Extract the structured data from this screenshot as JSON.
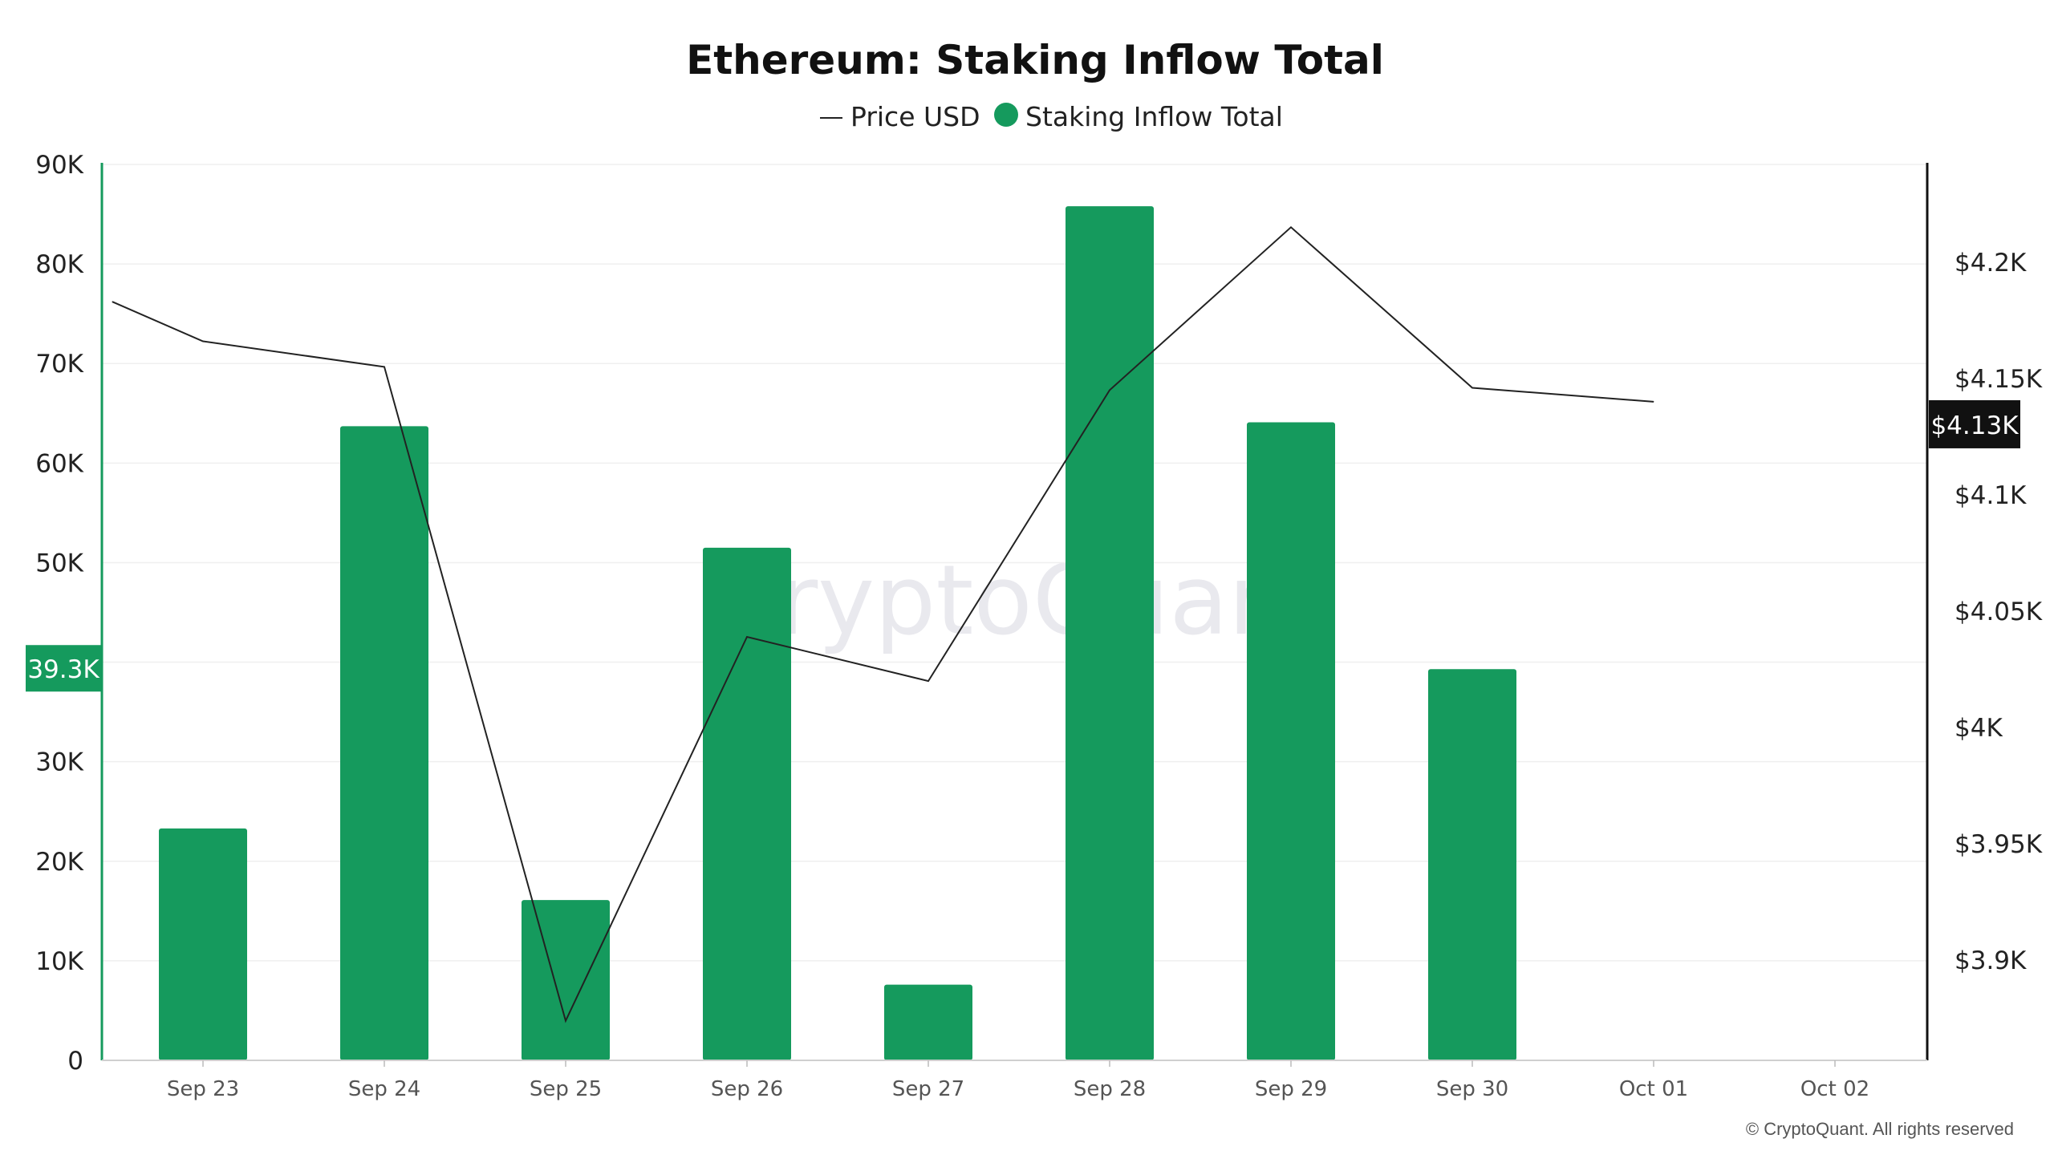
{
  "chart_data": {
    "type": "bar",
    "title": "Ethereum: Staking Inflow Total",
    "legend": [
      {
        "label": "Price USD",
        "symbol": "line",
        "color": "#222222"
      },
      {
        "label": "Staking Inflow Total",
        "symbol": "dot",
        "color": "#159a5d"
      }
    ],
    "legend_position": "top-center",
    "categories": [
      "Sep 23",
      "Sep 24",
      "Sep 25",
      "Sep 26",
      "Sep 27",
      "Sep 28",
      "Sep 29",
      "Sep 30",
      "Oct 01",
      "Oct 02"
    ],
    "series": [
      {
        "name": "Staking Inflow Total",
        "type": "bar",
        "axis": "left",
        "color": "#159a5d",
        "values": [
          23300,
          63700,
          16100,
          51500,
          7600,
          85800,
          64100,
          39300,
          null,
          null
        ]
      },
      {
        "name": "Price USD",
        "type": "line",
        "axis": "right",
        "color": "#222222",
        "x": [
          "Sep 22 12:00",
          "Sep 23",
          "Sep 24",
          "Sep 25",
          "Sep 26",
          "Sep 27",
          "Sep 28",
          "Sep 29",
          "Sep 30",
          "Oct 01"
        ],
        "values": [
          4183,
          4166,
          4155,
          3874,
          4039,
          4020,
          4145,
          4215,
          4146,
          4140
        ]
      }
    ],
    "y_left": {
      "ylim": [
        0,
        90000
      ],
      "ticks": [
        0,
        10000,
        20000,
        30000,
        40000,
        50000,
        60000,
        70000,
        80000,
        90000
      ],
      "tick_labels": [
        "0",
        "10K",
        "20K",
        "30K",
        "40K",
        "50K",
        "60K",
        "70K",
        "80K",
        "90K"
      ],
      "current_value_label": "39.3K",
      "current_value": 39300,
      "color": "#159a5d"
    },
    "y_right": {
      "ylim": [
        3857,
        4242
      ],
      "ticks": [
        3900,
        3950,
        4000,
        4050,
        4100,
        4150,
        4200
      ],
      "tick_labels": [
        "$3.9K",
        "$3.95K",
        "$4K",
        "$4.05K",
        "$4.1K",
        "$4.15K",
        "$4.2K"
      ],
      "current_value_label": "$4.13K",
      "current_value": 4130,
      "color": "#111111"
    },
    "grid": true,
    "watermark": "CryptoQuant",
    "copyright": "© CryptoQuant. All rights reserved"
  }
}
